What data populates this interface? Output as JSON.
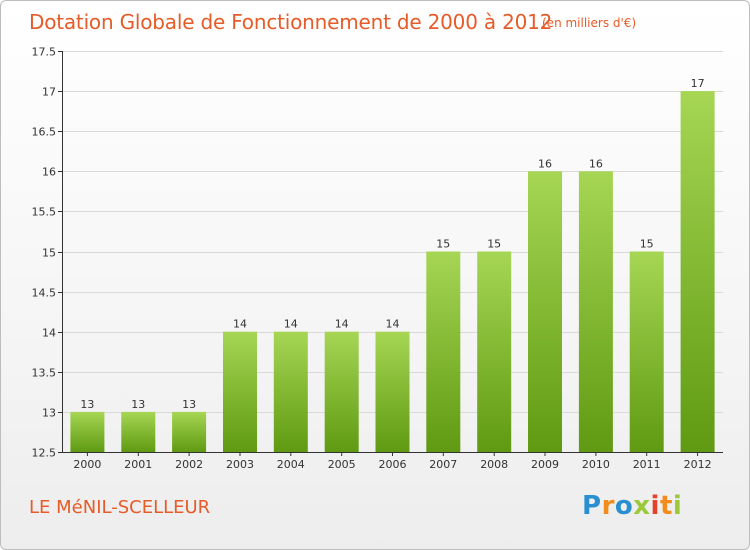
{
  "title": "Dotation Globale de Fonctionnement de 2000 à 2012",
  "subtitle": "(en milliers d'€)",
  "commune": "LE MéNIL-SCELLEUR",
  "brand": [
    "P",
    "r",
    "o",
    "x",
    "i",
    "t",
    "i"
  ],
  "colors": {
    "accent": "#e75b28",
    "bar_light": "#a6d654",
    "bar_dark": "#5f9a12",
    "grid": "#d9d9d9",
    "axis": "#333333",
    "label": "#333333"
  },
  "chart_data": {
    "type": "bar",
    "title": "Dotation Globale de Fonctionnement de 2000 à 2012",
    "subtitle": "(en milliers d'€)",
    "categories": [
      "2000",
      "2001",
      "2002",
      "2003",
      "2004",
      "2005",
      "2006",
      "2007",
      "2008",
      "2009",
      "2010",
      "2011",
      "2012"
    ],
    "values": [
      13,
      13,
      13,
      14,
      14,
      14,
      14,
      15,
      15,
      16,
      16,
      15,
      17
    ],
    "ylim": [
      12.5,
      17.5
    ],
    "yticks": [
      "12.5",
      "13",
      "13.5",
      "14",
      "14.5",
      "15",
      "15.5",
      "16",
      "16.5",
      "17",
      "17.5"
    ],
    "xlabel": "",
    "ylabel": "",
    "grid": "horizontal",
    "legend": "none"
  }
}
